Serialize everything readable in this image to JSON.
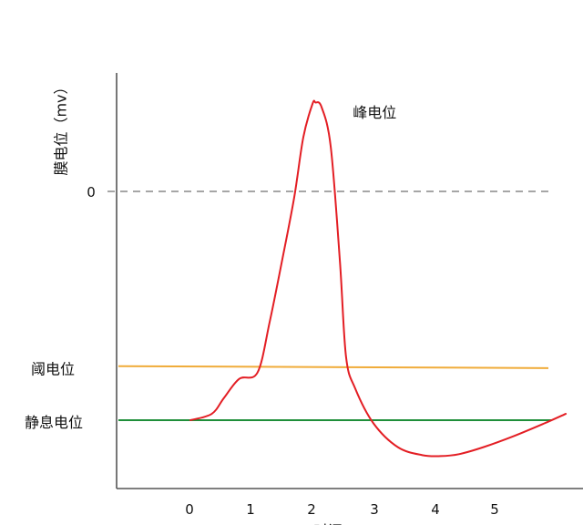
{
  "chart_data": {
    "type": "line",
    "ylabel": "膜电位（mv）",
    "xlabel": "时间",
    "xlim": [
      -1.05,
      6.5
    ],
    "ylim": [
      -90,
      35
    ],
    "x_ticks": [
      0,
      1,
      2,
      3,
      4,
      5
    ],
    "x_tick_labels": [
      "0",
      "1",
      "2",
      "3",
      "4",
      "5"
    ],
    "reference_lines": [
      {
        "name": "zero",
        "label": "0",
        "y": 0,
        "style": "dashed",
        "color": "#888888"
      },
      {
        "name": "threshold",
        "label": "阈电位",
        "y": -55,
        "y_end": -55.6,
        "x_from": -1.05,
        "x_to": 6.5,
        "style": "solid",
        "color": "#f0ac3a"
      },
      {
        "name": "resting",
        "label": "静息电位",
        "y": -72,
        "x_from": -1.05,
        "x_to": 6.5,
        "style": "solid",
        "color": "#1f8f3a"
      }
    ],
    "annotations": [
      {
        "text": "峰电位",
        "x": 2.6,
        "y": 25
      }
    ],
    "series": [
      {
        "color": "#e31e24",
        "x": [
          0.0,
          0.35,
          0.55,
          0.8,
          1.1,
          1.3,
          1.5,
          1.7,
          1.85,
          2.0,
          2.05,
          2.15,
          2.3,
          2.45,
          2.55,
          2.7,
          3.0,
          3.4,
          3.8,
          4.1,
          4.4,
          4.8,
          5.3,
          5.8,
          6.15
        ],
        "y": [
          -72,
          -70,
          -65,
          -59,
          -57,
          -41,
          -22,
          -2,
          17,
          27.5,
          28,
          26.5,
          14,
          -22,
          -52,
          -62,
          -73,
          -80.5,
          -83,
          -83.3,
          -82.7,
          -80.5,
          -77,
          -73,
          -70
        ]
      }
    ]
  }
}
